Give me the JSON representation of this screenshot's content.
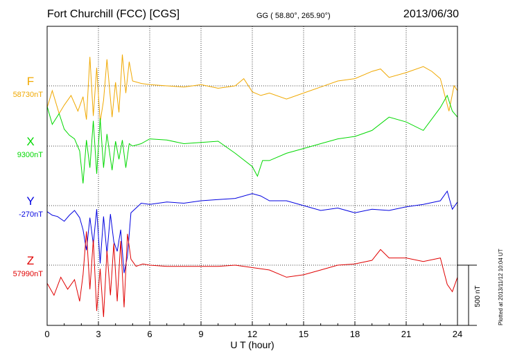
{
  "header": {
    "station": "Fort Churchill (FCC)  [CGS]",
    "coords": "GG ( 58.80°, 265.90°)",
    "date": "2013/06/30"
  },
  "side_note": "Plotted at 2013/11/12 10:04 UT",
  "scale_label": "500 nT",
  "chart_data": {
    "type": "line",
    "title": "Fort Churchill (FCC)  [CGS]",
    "xlabel": "U T (hour)",
    "xlim": [
      0,
      24
    ],
    "xticks": [
      0,
      3,
      6,
      9,
      12,
      15,
      18,
      21,
      24
    ],
    "xtick_labels": [
      "0",
      "3",
      "6",
      "9",
      "12",
      "15",
      "18",
      "21",
      "24"
    ],
    "grid": true,
    "scale_nT": 500,
    "series": [
      {
        "name": "F",
        "baseline_label": "58730nT",
        "baseline": 58730,
        "color": "#f0a800",
        "x": [
          0,
          0.3,
          0.7,
          1.0,
          1.4,
          1.8,
          2.1,
          2.3,
          2.5,
          2.7,
          2.9,
          3.1,
          3.3,
          3.5,
          3.8,
          4.0,
          4.2,
          4.4,
          4.6,
          4.8,
          5.0,
          5.5,
          6.0,
          7,
          8,
          9,
          10,
          11,
          11.5,
          12,
          12.5,
          13,
          14,
          15,
          16,
          17,
          18,
          19,
          19.5,
          20,
          21,
          22,
          22.5,
          23,
          23.5,
          23.8,
          24
        ],
        "values": [
          -180,
          -40,
          -230,
          -160,
          -80,
          -210,
          -90,
          -280,
          240,
          -250,
          150,
          -300,
          -120,
          220,
          -260,
          30,
          -220,
          260,
          -60,
          200,
          40,
          20,
          10,
          0,
          -10,
          10,
          -20,
          0,
          60,
          -50,
          -80,
          -60,
          -110,
          -60,
          -10,
          40,
          60,
          120,
          140,
          70,
          110,
          160,
          120,
          60,
          -210,
          0,
          -40
        ]
      },
      {
        "name": "X",
        "baseline_label": "9300nT",
        "baseline": 9300,
        "color": "#00d800",
        "x": [
          0,
          0.3,
          0.7,
          1.0,
          1.3,
          1.6,
          1.9,
          2.1,
          2.3,
          2.5,
          2.7,
          2.9,
          3.1,
          3.3,
          3.5,
          3.8,
          4.0,
          4.2,
          4.4,
          4.6,
          4.8,
          5.0,
          5.5,
          6,
          7,
          8,
          9,
          10,
          11,
          12,
          12.3,
          12.6,
          13,
          14,
          15,
          16,
          17,
          18,
          19,
          20,
          21,
          22,
          23,
          23.4,
          23.7,
          24
        ],
        "values": [
          330,
          180,
          270,
          140,
          90,
          60,
          -40,
          -310,
          50,
          -180,
          210,
          -230,
          230,
          -180,
          100,
          -200,
          40,
          -110,
          50,
          -180,
          20,
          0,
          20,
          60,
          50,
          20,
          30,
          40,
          -60,
          -170,
          -250,
          -120,
          -120,
          -60,
          -20,
          20,
          60,
          80,
          130,
          240,
          200,
          130,
          320,
          420,
          290,
          240
        ]
      },
      {
        "name": "Y",
        "baseline_label": "-270nT",
        "baseline": -270,
        "color": "#0000e0",
        "x": [
          0,
          0.3,
          0.6,
          1.0,
          1.3,
          1.6,
          1.9,
          2.1,
          2.3,
          2.5,
          2.7,
          2.9,
          3.1,
          3.3,
          3.5,
          3.7,
          3.9,
          4.1,
          4.3,
          4.5,
          4.7,
          4.9,
          5.2,
          5.5,
          6,
          7,
          8,
          9,
          10,
          11,
          12,
          12.5,
          13,
          14,
          15,
          16,
          17,
          18,
          19,
          20,
          21,
          22,
          23,
          23.4,
          23.7,
          24
        ],
        "values": [
          -50,
          -80,
          -90,
          -130,
          -80,
          -40,
          -100,
          -200,
          -370,
          -100,
          -320,
          -30,
          -480,
          -90,
          -400,
          -70,
          -300,
          -380,
          -200,
          -560,
          -420,
          -60,
          -20,
          20,
          10,
          30,
          20,
          40,
          50,
          60,
          100,
          80,
          40,
          40,
          0,
          -40,
          -20,
          -60,
          -30,
          -40,
          -10,
          10,
          40,
          120,
          -30,
          30
        ]
      },
      {
        "name": "Z",
        "baseline_label": "57990nT",
        "baseline": 57990,
        "color": "#e00000",
        "x": [
          0,
          0.4,
          0.8,
          1.2,
          1.6,
          1.9,
          2.1,
          2.3,
          2.5,
          2.7,
          2.9,
          3.1,
          3.3,
          3.5,
          3.7,
          3.9,
          4.1,
          4.3,
          4.5,
          4.7,
          4.9,
          5.2,
          5.6,
          6,
          7,
          8,
          9,
          10,
          11,
          12,
          13,
          14,
          15,
          16,
          17,
          18,
          19,
          19.5,
          20,
          21,
          22,
          23,
          23.4,
          23.7,
          24
        ],
        "values": [
          -150,
          -250,
          -100,
          -200,
          -120,
          -300,
          -80,
          280,
          -200,
          210,
          -380,
          -30,
          -430,
          120,
          -250,
          180,
          -300,
          200,
          -350,
          260,
          50,
          -10,
          10,
          0,
          -10,
          -10,
          -10,
          -10,
          0,
          -20,
          -40,
          -100,
          -80,
          -40,
          0,
          10,
          40,
          130,
          60,
          60,
          30,
          60,
          -160,
          -220,
          -100
        ]
      }
    ]
  }
}
